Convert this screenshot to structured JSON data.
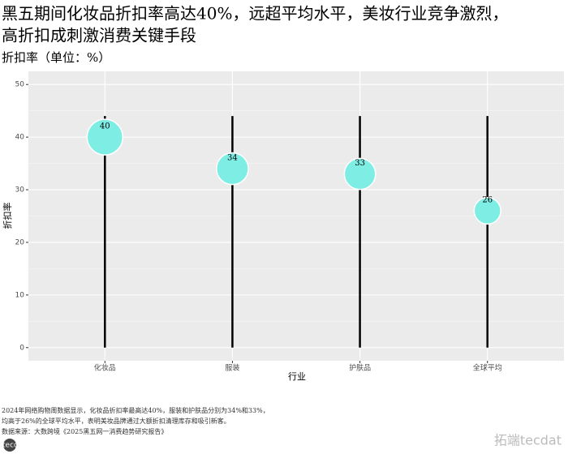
{
  "chart_data": {
    "type": "lollipop",
    "title": [
      "黑五期间化妆品折扣率高达40%，远超平均水平，美妆行业竞争激烈，",
      "高折扣成刺激消费关键手段"
    ],
    "subtitle": "折扣率（单位：%）",
    "x_label": "行业",
    "y_label": "折扣率",
    "categories": [
      "化妆品",
      "服装",
      "护肤品",
      "全球平均"
    ],
    "values": [
      40,
      34,
      33,
      26
    ],
    "stem_range": [
      0,
      44
    ],
    "color": "#7eede3",
    "ylim": [
      -2.5,
      52.5
    ],
    "yticks": [
      0,
      10,
      20,
      30,
      40,
      50
    ],
    "grid": true
  },
  "notes": [
    "2024年网络购物周数据显示，化妆品折扣率最高达40%，服装和护肤品分别为34%和33%，",
    "均高于26%的全球平均水平，表明美妆品牌通过大额折扣清理库存和吸引新客。",
    "数据来源：大数跨境《2025黑五网一消费趋势研究报告》"
  ],
  "logo": "tecdat 拓端®",
  "watermark": "拓端tecdat"
}
